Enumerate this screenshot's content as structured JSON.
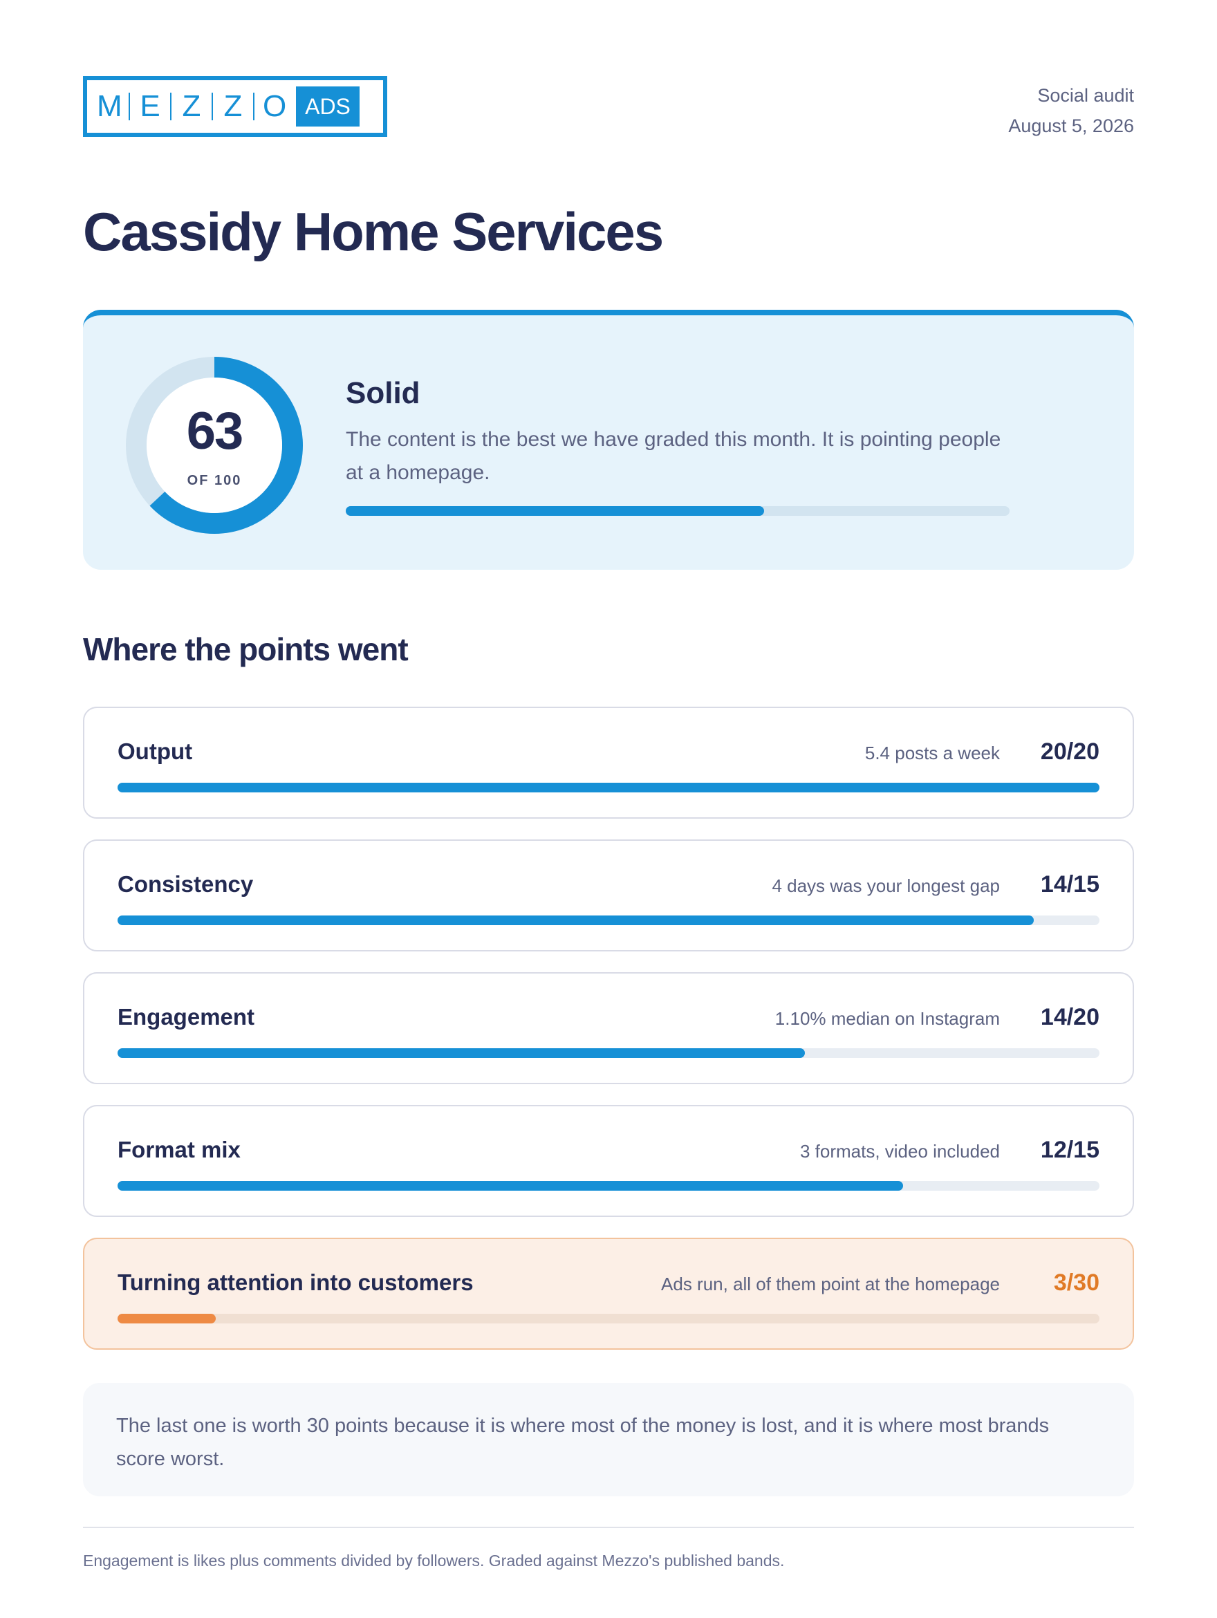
{
  "header": {
    "logo_letters": [
      "M",
      "E",
      "Z",
      "Z",
      "O"
    ],
    "logo_badge": "ADS",
    "report_type": "Social audit",
    "date": "August 5, 2026"
  },
  "client_name": "Cassidy Home Services",
  "score_card": {
    "score": "63",
    "score_value": 63,
    "score_max": 100,
    "score_out_of": "OF 100",
    "grade": "Solid",
    "description": "The content is the best we have graded this month. It is pointing people at a homepage.",
    "colors": {
      "accent": "#1690d6",
      "track": "#d2e4f0",
      "background": "#e6f3fb"
    }
  },
  "section_title": "Where the points went",
  "categories": [
    {
      "name": "Output",
      "note": "5.4 posts a week",
      "score": "20/20",
      "points": 20,
      "max": 20
    },
    {
      "name": "Consistency",
      "note": "4 days was your longest gap",
      "score": "14/15",
      "points": 14,
      "max": 15
    },
    {
      "name": "Engagement",
      "note": "1.10% median on Instagram",
      "score": "14/20",
      "points": 14,
      "max": 20
    },
    {
      "name": "Format mix",
      "note": "3 formats, video included",
      "score": "12/15",
      "points": 12,
      "max": 15
    },
    {
      "name": "Turning attention into customers",
      "note": "Ads run, all of them point at the homepage",
      "score": "3/30",
      "points": 3,
      "max": 30,
      "highlight": true
    }
  ],
  "colors": {
    "accent": "#1690d6",
    "warning": "#e07a26",
    "warning_bar": "#ee8a44"
  },
  "note": "The last one is worth 30 points because it is where most of the money is lost, and it is where most brands score worst.",
  "footer": "Engagement is likes plus comments divided by followers. Graded against Mezzo's published bands."
}
